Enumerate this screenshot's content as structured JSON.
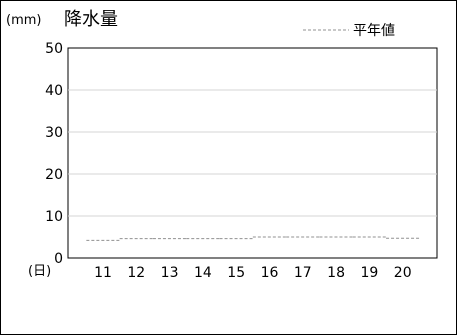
{
  "chart_data": {
    "type": "line",
    "title": "降水量",
    "unit_label": "(mm)",
    "x_unit_label": "(日)",
    "categories": [
      "11",
      "12",
      "13",
      "14",
      "15",
      "16",
      "17",
      "18",
      "19",
      "20"
    ],
    "series": [
      {
        "name": "平年値",
        "values": [
          4.2,
          4.6,
          4.6,
          4.6,
          4.6,
          5.0,
          5.0,
          5.0,
          5.0,
          4.7
        ],
        "style": "dashed",
        "color": "#909090"
      }
    ],
    "ylim": [
      0,
      50
    ],
    "yticks": [
      "0",
      "10",
      "20",
      "30",
      "40",
      "50"
    ],
    "grid": true,
    "legend": "top-right",
    "colors": {
      "axis": "#000000",
      "grid": "#d4d4d4",
      "series": "#909090"
    }
  }
}
